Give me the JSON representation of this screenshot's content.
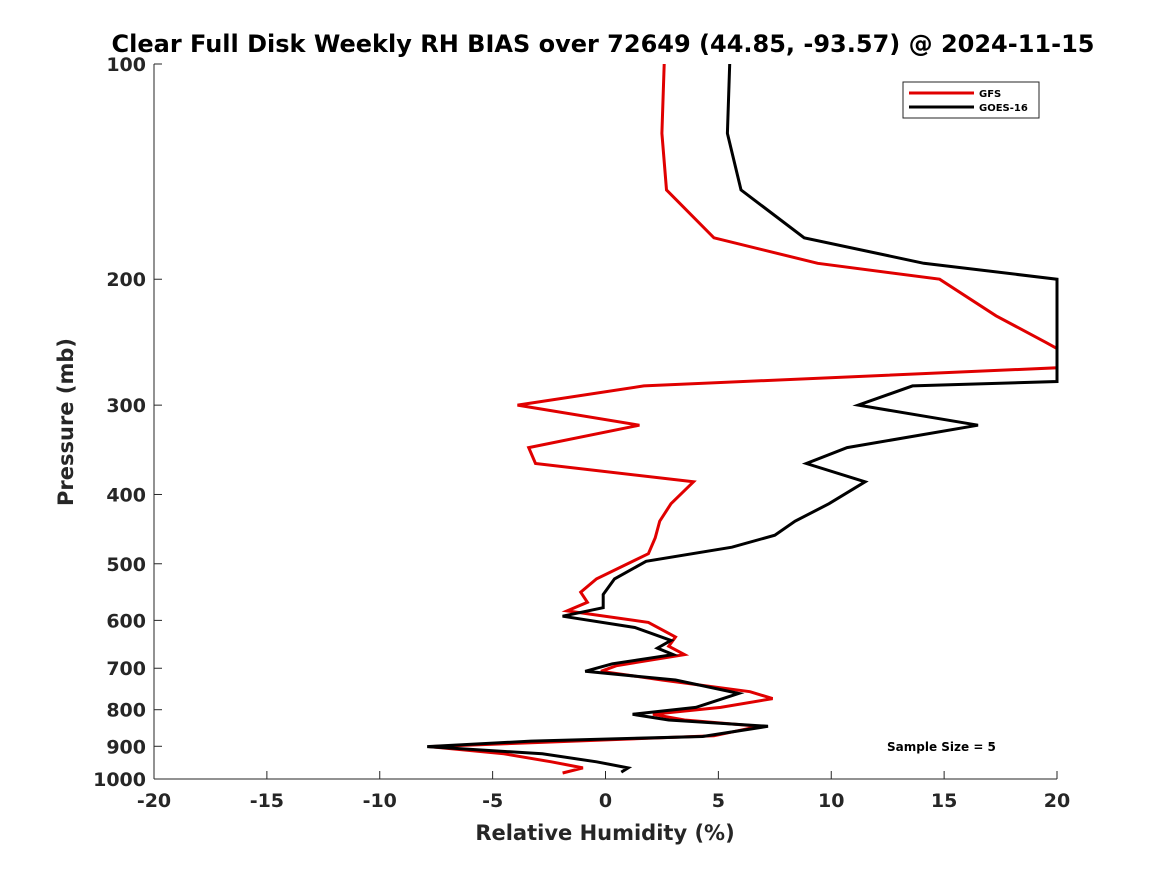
{
  "chart_data": {
    "type": "line",
    "title": "Clear Full Disk Weekly RH BIAS over 72649 (44.85, -93.57) @ 2024-11-15",
    "xlabel": "Relative Humidity (%)",
    "ylabel": "Pressure (mb)",
    "xlim": [
      -20,
      20
    ],
    "ylim": [
      100,
      1000
    ],
    "y_scale": "log",
    "y_reversed": true,
    "x_ticks": [
      "-20",
      "-15",
      "-10",
      "-5",
      "0",
      "5",
      "10",
      "15",
      "20"
    ],
    "x_tick_values": [
      -20,
      -15,
      -10,
      -5,
      0,
      5,
      10,
      15,
      20
    ],
    "y_ticks": [
      "100",
      "200",
      "300",
      "400",
      "500",
      "600",
      "700",
      "800",
      "900",
      "1000"
    ],
    "y_tick_values": [
      100,
      200,
      300,
      400,
      500,
      600,
      700,
      800,
      900,
      1000
    ],
    "legend_position": "top-right",
    "grid": false,
    "annotation": "Sample Size = 5",
    "series": [
      {
        "name": "GFS",
        "color": "#e00000",
        "points": [
          [
            2.6,
            100
          ],
          [
            2.5,
            125
          ],
          [
            2.7,
            150
          ],
          [
            4.8,
            175
          ],
          [
            9.4,
            190
          ],
          [
            14.8,
            200
          ],
          [
            17.3,
            225
          ],
          [
            19.5,
            245
          ],
          [
            20,
            250
          ],
          [
            20,
            266
          ],
          [
            1.7,
            282
          ],
          [
            -3.9,
            300
          ],
          [
            1.5,
            320
          ],
          [
            -3.4,
            344
          ],
          [
            -3.1,
            362
          ],
          [
            3.9,
            384
          ],
          [
            2.9,
            412
          ],
          [
            2.4,
            436
          ],
          [
            2.2,
            460
          ],
          [
            1.9,
            484
          ],
          [
            -0.4,
            525
          ],
          [
            -1.1,
            548
          ],
          [
            -0.8,
            566
          ],
          [
            -1.7,
            582
          ],
          [
            1.9,
            604
          ],
          [
            3.1,
            633
          ],
          [
            2.8,
            652
          ],
          [
            3.5,
            670
          ],
          [
            0.5,
            694
          ],
          [
            -0.2,
            707
          ],
          [
            2.5,
            727
          ],
          [
            6.4,
            755
          ],
          [
            7.4,
            772
          ],
          [
            5.1,
            794
          ],
          [
            2.1,
            812
          ],
          [
            3.5,
            827
          ],
          [
            6.8,
            844
          ],
          [
            4.8,
            870
          ],
          [
            -3.0,
            889
          ],
          [
            -7.8,
            901
          ],
          [
            -4.5,
            922
          ],
          [
            -2.4,
            946
          ],
          [
            -1.0,
            965
          ],
          [
            -1.9,
            981
          ]
        ]
      },
      {
        "name": "GOES-16",
        "color": "#000000",
        "points": [
          [
            5.5,
            100
          ],
          [
            5.4,
            125
          ],
          [
            6.0,
            150
          ],
          [
            8.8,
            175
          ],
          [
            14.1,
            190
          ],
          [
            20,
            200
          ],
          [
            20,
            278
          ],
          [
            13.6,
            282
          ],
          [
            11.2,
            300
          ],
          [
            16.5,
            320
          ],
          [
            10.7,
            344
          ],
          [
            8.9,
            362
          ],
          [
            11.5,
            384
          ],
          [
            9.9,
            412
          ],
          [
            8.4,
            436
          ],
          [
            7.5,
            456
          ],
          [
            5.6,
            474
          ],
          [
            1.8,
            496
          ],
          [
            0.4,
            525
          ],
          [
            -0.1,
            552
          ],
          [
            -0.1,
            576
          ],
          [
            -1.9,
            592
          ],
          [
            1.3,
            614
          ],
          [
            2.9,
            640
          ],
          [
            2.3,
            656
          ],
          [
            3.0,
            670
          ],
          [
            0.3,
            690
          ],
          [
            -0.9,
            707
          ],
          [
            3.1,
            727
          ],
          [
            5.9,
            759
          ],
          [
            4.0,
            794
          ],
          [
            1.2,
            812
          ],
          [
            2.8,
            827
          ],
          [
            7.2,
            844
          ],
          [
            4.3,
            872
          ],
          [
            -3.3,
            885
          ],
          [
            -7.9,
            901
          ],
          [
            -2.8,
            922
          ],
          [
            -0.4,
            946
          ],
          [
            1.0,
            965
          ],
          [
            0.7,
            978
          ]
        ]
      }
    ]
  }
}
